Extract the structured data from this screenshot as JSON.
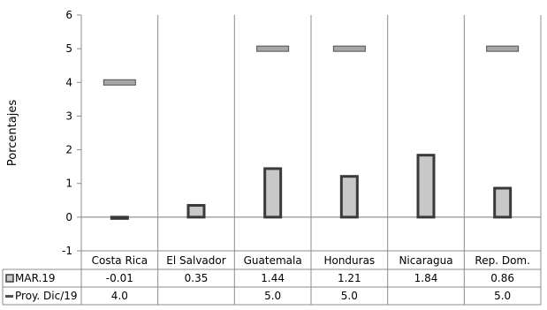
{
  "chart_data": {
    "type": "bar",
    "categories": [
      "Costa Rica",
      "El Salvador",
      "Guatemala",
      "Honduras",
      "Nicaragua",
      "Rep. Dom."
    ],
    "ylabel": "Porcentajes",
    "ylim": [
      -1,
      6
    ],
    "yticks": [
      "-1",
      "0",
      "1",
      "2",
      "3",
      "4",
      "5",
      "6"
    ],
    "grid": false,
    "legend": "data table below chart",
    "series": [
      {
        "name": "MAR.19",
        "kind": "bar",
        "values": [
          -0.01,
          0.35,
          1.44,
          1.21,
          1.84,
          0.86
        ],
        "labels": [
          "-0.01",
          "0.35",
          "1.44",
          "1.21",
          "1.84",
          "0.86"
        ],
        "color": "#c8c8c8",
        "stroke": "#3a3a3a"
      },
      {
        "name": "Proy. Dic/19",
        "kind": "marker",
        "values": [
          4.0,
          null,
          5.0,
          5.0,
          null,
          5.0
        ],
        "labels": [
          "4.0",
          "",
          "5.0",
          "5.0",
          "",
          "5.0"
        ],
        "color": "#a6a6a6",
        "stroke": "#505050"
      }
    ]
  }
}
